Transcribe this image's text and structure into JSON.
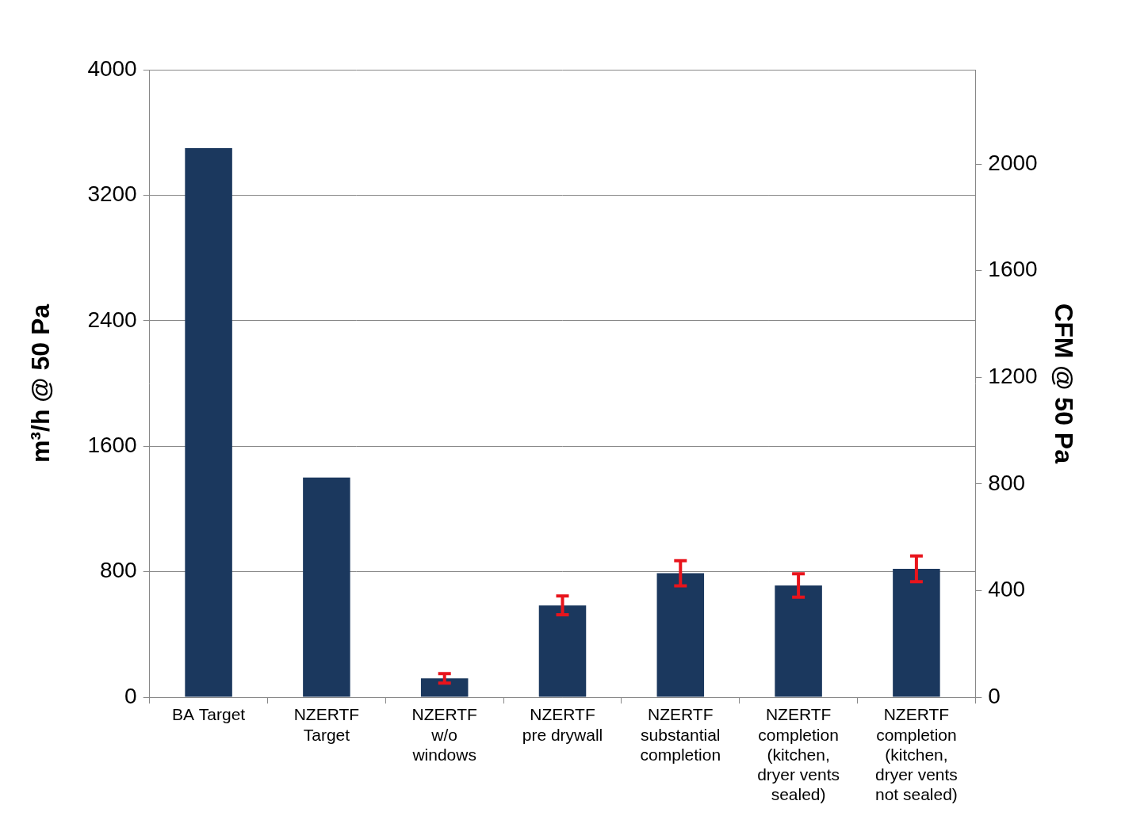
{
  "chart_data": {
    "type": "bar",
    "categories": [
      [
        "BA Target"
      ],
      [
        "NZERTF",
        "Target"
      ],
      [
        "NZERTF",
        "w/o",
        "windows"
      ],
      [
        "NZERTF",
        "pre drywall"
      ],
      [
        "NZERTF",
        "substantial",
        "completion"
      ],
      [
        "NZERTF",
        "completion",
        "(kitchen,",
        "dryer vents",
        "sealed)"
      ],
      [
        "NZERTF",
        "completion",
        "(kitchen,",
        "dryer vents",
        "not sealed)"
      ]
    ],
    "values": [
      3500,
      1400,
      120,
      585,
      790,
      712,
      818
    ],
    "errors": [
      null,
      null,
      30,
      60,
      80,
      75,
      82
    ],
    "color": "#1b385e",
    "y_label": "m³/h @ 50 Pa",
    "y2_label": "CFM @ 50 Pa",
    "ylim": [
      0,
      4000
    ],
    "yticks": [
      0,
      800,
      1600,
      2400,
      3200,
      4000
    ],
    "y2lim": [
      0,
      2354
    ],
    "y2ticks": [
      0,
      400,
      800,
      1200,
      1600,
      2000
    ],
    "grid": true
  }
}
